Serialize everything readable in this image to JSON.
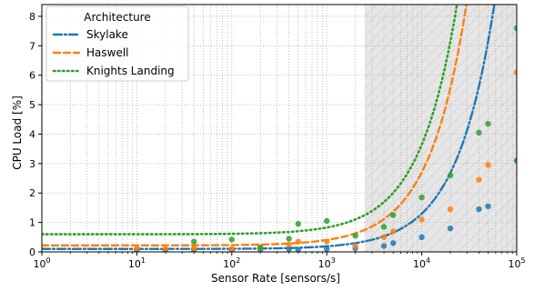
{
  "chart_data": {
    "type": "line",
    "xlabel": "Sensor Rate [sensors/s]",
    "ylabel": "CPU Load [%]",
    "xscale": "log",
    "xlim": [
      1,
      100000
    ],
    "ylim": [
      0,
      8.4
    ],
    "x_ticks": [
      {
        "value": 1,
        "base": "10",
        "exp": "0"
      },
      {
        "value": 10,
        "base": "10",
        "exp": "1"
      },
      {
        "value": 100,
        "base": "10",
        "exp": "2"
      },
      {
        "value": 1000,
        "base": "10",
        "exp": "3"
      },
      {
        "value": 10000,
        "base": "10",
        "exp": "4"
      },
      {
        "value": 100000,
        "base": "10",
        "exp": "5"
      }
    ],
    "y_ticks": [
      "0",
      "1",
      "2",
      "3",
      "4",
      "5",
      "6",
      "7",
      "8"
    ],
    "grid": true,
    "shaded_region": {
      "x_from": 2500,
      "x_to": 100000,
      "hatched": true
    },
    "legend": {
      "title": "Architecture",
      "placement": "top-left"
    },
    "series": [
      {
        "name": "Skylake",
        "color": "#1f77b4",
        "line_style": "dashdot",
        "fit": {
          "a": 0.1,
          "b": 3e-05
        },
        "points": [
          [
            10,
            0.05
          ],
          [
            20,
            0.05
          ],
          [
            40,
            0.07
          ],
          [
            100,
            0.05
          ],
          [
            200,
            0.08
          ],
          [
            400,
            0.1
          ],
          [
            500,
            0.07
          ],
          [
            1000,
            0.1
          ],
          [
            2000,
            0.12
          ],
          [
            4000,
            0.2
          ],
          [
            5000,
            0.3
          ],
          [
            10000,
            0.5
          ],
          [
            20000,
            0.8
          ],
          [
            40000,
            1.45
          ],
          [
            50000,
            1.55
          ],
          [
            100000,
            3.1
          ]
        ]
      },
      {
        "name": "Haswell",
        "color": "#ff7f0e",
        "line_style": "dashed",
        "fit": {
          "a": 0.22,
          "b": 6.2e-05
        },
        "points": [
          [
            10,
            0.12
          ],
          [
            20,
            0.1
          ],
          [
            40,
            0.12
          ],
          [
            100,
            0.1
          ],
          [
            200,
            0.15
          ],
          [
            400,
            0.25
          ],
          [
            500,
            0.35
          ],
          [
            1000,
            0.35
          ],
          [
            2000,
            0.2
          ],
          [
            4000,
            0.5
          ],
          [
            5000,
            0.7
          ],
          [
            10000,
            1.1
          ],
          [
            20000,
            1.45
          ],
          [
            40000,
            2.45
          ],
          [
            50000,
            2.95
          ],
          [
            100000,
            6.1
          ]
        ]
      },
      {
        "name": "Knights Landing",
        "color": "#2ca02c",
        "line_style": "dotted",
        "fit": {
          "a": 0.6,
          "b": 7.6e-05
        },
        "points": [
          [
            40,
            0.35
          ],
          [
            100,
            0.42
          ],
          [
            200,
            0.15
          ],
          [
            400,
            0.45
          ],
          [
            500,
            0.95
          ],
          [
            1000,
            1.05
          ],
          [
            2000,
            0.55
          ],
          [
            4000,
            0.85
          ],
          [
            5000,
            1.25
          ],
          [
            10000,
            1.85
          ],
          [
            20000,
            2.6
          ],
          [
            40000,
            4.05
          ],
          [
            50000,
            4.35
          ],
          [
            100000,
            7.6
          ]
        ]
      }
    ]
  }
}
